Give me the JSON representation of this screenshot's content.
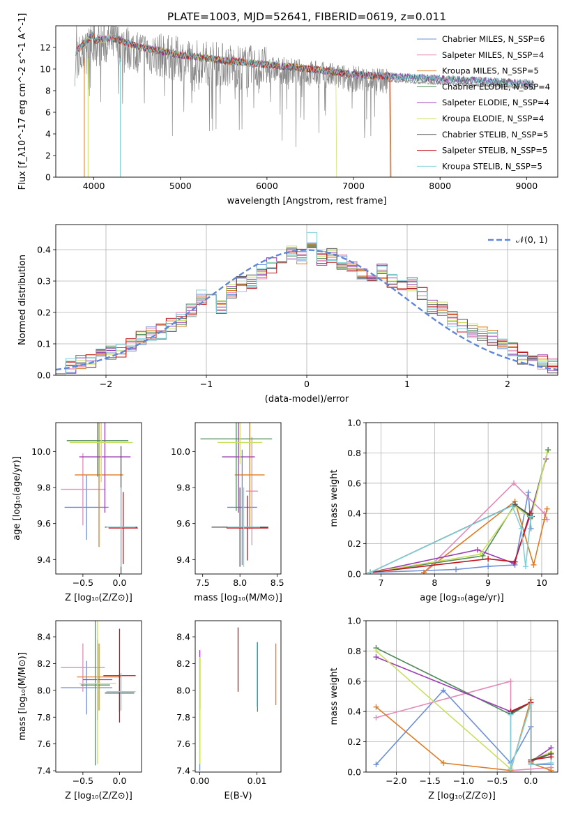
{
  "title": "PLATE=1003, MJD=52641, FIBERID=0619, z=0.011",
  "colors": {
    "Chabrier MILES": "#6b8fd8",
    "Salpeter MILES": "#e48ab8",
    "Kroupa MILES": "#e07a20",
    "Chabrier ELODIE": "#4f8a5a",
    "Salpeter ELODIE": "#9a3fb3",
    "Kroupa ELODIE": "#c8e060",
    "Chabrier STELIB": "#555555",
    "Salpeter STELIB": "#c0141c",
    "Kroupa STELIB": "#7fd0d8",
    "data": "#888888",
    "normal": "#5f86d8"
  },
  "chart_data": [
    {
      "id": "spectrum",
      "type": "line",
      "xlabel": "wavelength [Angstrom, rest frame]",
      "ylabel": "Flux [f_λ10^-17 erg cm^-2 s^-1 A^-1]",
      "xlim": [
        3560,
        9360
      ],
      "ylim": [
        0,
        14
      ],
      "xticks": [
        4000,
        5000,
        6000,
        7000,
        8000,
        9000
      ],
      "yticks": [
        0,
        2,
        4,
        6,
        8,
        10,
        12
      ],
      "legend_position": "top-right",
      "legend": [
        "Chabrier MILES, N_SSP=6",
        "Salpeter MILES, N_SSP=4",
        "Kroupa MILES, N_SSP=5",
        "Chabrier ELODIE, N_SSP=4",
        "Salpeter ELODIE, N_SSP=4",
        "Kroupa ELODIE, N_SSP=4",
        "Chabrier STELIB, N_SSP=5",
        "Salpeter STELIB, N_SSP=5",
        "Kroupa STELIB, N_SSP=5"
      ],
      "continuum": {
        "x": [
          3780,
          3900,
          4000,
          4200,
          4500,
          5000,
          5500,
          6000,
          6500,
          7000,
          7500,
          8000,
          8500,
          9000,
          9100
        ],
        "y": [
          10.5,
          11.5,
          12.2,
          12.5,
          11.7,
          10.9,
          10.4,
          10.0,
          9.6,
          9.1,
          8.9,
          8.7,
          8.5,
          8.3,
          8.2
        ]
      },
      "grid": false
    },
    {
      "id": "residuals",
      "type": "step",
      "xlabel": "(data-model)/error",
      "ylabel": "Normed distribution",
      "xlim": [
        -2.5,
        2.5
      ],
      "ylim": [
        0,
        0.48
      ],
      "xticks": [
        -2,
        -1,
        0,
        1,
        2
      ],
      "yticks": [
        0.0,
        0.1,
        0.2,
        0.3,
        0.4
      ],
      "legend": [
        "𝒩(0, 1)"
      ],
      "legend_position": "top-right",
      "grid": true,
      "base_hist": {
        "bin_start": -2.5,
        "bin_width": 0.1,
        "values": [
          0.03,
          0.03,
          0.04,
          0.05,
          0.06,
          0.07,
          0.08,
          0.1,
          0.12,
          0.13,
          0.14,
          0.16,
          0.18,
          0.21,
          0.25,
          0.26,
          0.22,
          0.27,
          0.29,
          0.3,
          0.33,
          0.35,
          0.37,
          0.39,
          0.38,
          0.43,
          0.37,
          0.38,
          0.36,
          0.35,
          0.33,
          0.31,
          0.33,
          0.3,
          0.28,
          0.29,
          0.26,
          0.22,
          0.21,
          0.18,
          0.16,
          0.14,
          0.13,
          0.12,
          0.1,
          0.08,
          0.06,
          0.05,
          0.04,
          0.03
        ]
      }
    },
    {
      "id": "age_vs_Z",
      "type": "errorbar",
      "xlabel": "Z [log₁₀(Z/Z⊙)]",
      "ylabel": "age  [log₁₀(age/yr)]",
      "xlim": [
        -0.87,
        0.3
      ],
      "ylim": [
        9.32,
        10.16
      ],
      "xticks": [
        -0.5,
        0.0
      ],
      "yticks": [
        9.4,
        9.6,
        9.8,
        10.0
      ],
      "grid": false,
      "points": [
        {
          "model": "Chabrier MILES",
          "x": -0.45,
          "xerr": 0.3,
          "y": 9.69,
          "yerr": 0.18
        },
        {
          "model": "Salpeter MILES",
          "x": -0.5,
          "xerr": 0.3,
          "y": 9.79,
          "yerr": 0.2
        },
        {
          "model": "Kroupa MILES",
          "x": -0.28,
          "xerr": 0.33,
          "y": 9.87,
          "yerr": 0.4
        },
        {
          "model": "Chabrier ELODIE",
          "x": -0.3,
          "xerr": 0.42,
          "y": 10.06,
          "yerr": 0.2
        },
        {
          "model": "Salpeter ELODIE",
          "x": -0.2,
          "xerr": 0.35,
          "y": 9.97,
          "yerr": 0.31
        },
        {
          "model": "Kroupa ELODIE",
          "x": -0.25,
          "xerr": 0.43,
          "y": 10.05,
          "yerr": 0.22
        },
        {
          "model": "Chabrier STELIB",
          "x": 0.02,
          "xerr": 0.22,
          "y": 9.58,
          "yerr": 0.45
        },
        {
          "model": "Salpeter STELIB",
          "x": 0.05,
          "xerr": 0.2,
          "y": 9.575,
          "yerr": 0.2
        },
        {
          "model": "Kroupa STELIB",
          "x": 0.02,
          "xerr": 0.2,
          "y": 9.58,
          "yerr": 0.22
        }
      ]
    },
    {
      "id": "age_vs_mass",
      "type": "errorbar",
      "xlabel": "mass [log₁₀(M/M⊙)]",
      "ylabel": "",
      "xlim": [
        7.4,
        8.55
      ],
      "ylim": [
        9.32,
        10.16
      ],
      "xticks": [
        7.5,
        8.0,
        8.5
      ],
      "yticks": [
        9.4,
        9.6,
        9.8,
        10.0
      ],
      "grid": false,
      "points": [
        {
          "model": "Chabrier MILES",
          "x": 8.03,
          "xerr": 0.2,
          "y": 9.69,
          "yerr": 0.32
        },
        {
          "model": "Salpeter MILES",
          "x": 8.16,
          "xerr": 0.08,
          "y": 9.78,
          "yerr": 0.3
        },
        {
          "model": "Kroupa MILES",
          "x": 8.13,
          "xerr": 0.2,
          "y": 9.87,
          "yerr": 0.3
        },
        {
          "model": "Chabrier ELODIE",
          "x": 7.95,
          "xerr": 0.48,
          "y": 10.07,
          "yerr": 0.4
        },
        {
          "model": "Salpeter ELODIE",
          "x": 7.98,
          "xerr": 0.22,
          "y": 9.97,
          "yerr": 0.31
        },
        {
          "model": "Kroupa ELODIE",
          "x": 8.0,
          "xerr": 0.3,
          "y": 10.05,
          "yerr": 0.12
        },
        {
          "model": "Chabrier STELIB",
          "x": 8.0,
          "xerr": 0.38,
          "y": 9.58,
          "yerr": 0.22
        },
        {
          "model": "Salpeter STELIB",
          "x": 8.1,
          "xerr": 0.28,
          "y": 9.575,
          "yerr": 0.18
        },
        {
          "model": "Kroupa STELIB",
          "x": 8.05,
          "xerr": 0.22,
          "y": 9.58,
          "yerr": 0.22
        }
      ]
    },
    {
      "id": "weight_vs_age",
      "type": "line",
      "xlabel": "age  [log₁₀(age/yr)]",
      "ylabel": "mass weight",
      "xlim": [
        6.72,
        10.3
      ],
      "ylim": [
        0,
        1
      ],
      "xticks": [
        7,
        8,
        9,
        10
      ],
      "yticks": [
        0.0,
        0.2,
        0.4,
        0.6,
        0.8,
        1.0
      ],
      "grid": true,
      "series": [
        {
          "model": "Chabrier MILES",
          "x": [
            6.8,
            8.4,
            9.0,
            9.5,
            9.75,
            9.8
          ],
          "y": [
            0.01,
            0.03,
            0.05,
            0.06,
            0.54,
            0.3
          ]
        },
        {
          "model": "Salpeter MILES",
          "x": [
            7.8,
            9.48,
            10.05,
            10.1
          ],
          "y": [
            0.01,
            0.6,
            0.4,
            0.36
          ]
        },
        {
          "model": "Kroupa MILES",
          "x": [
            7.8,
            9.5,
            9.85,
            10.05,
            10.1
          ],
          "y": [
            0.01,
            0.48,
            0.06,
            0.36,
            0.43
          ]
        },
        {
          "model": "Chabrier ELODIE",
          "x": [
            6.8,
            8.9,
            9.5,
            9.78,
            10.12
          ],
          "y": [
            0.01,
            0.12,
            0.46,
            0.38,
            0.82
          ]
        },
        {
          "model": "Salpeter ELODIE",
          "x": [
            6.8,
            8.8,
            9.48,
            9.8,
            10.08
          ],
          "y": [
            0.01,
            0.16,
            0.07,
            0.4,
            0.76
          ]
        },
        {
          "model": "Kroupa ELODIE",
          "x": [
            6.8,
            8.85,
            9.5,
            9.8,
            10.1
          ],
          "y": [
            0.01,
            0.13,
            0.45,
            0.37,
            0.8
          ]
        },
        {
          "model": "Chabrier STELIB",
          "x": [
            6.8,
            9.5,
            9.78,
            9.82
          ],
          "y": [
            0.01,
            0.46,
            0.39,
            0.38
          ]
        },
        {
          "model": "Salpeter STELIB",
          "x": [
            6.8,
            9.0,
            9.5,
            9.78
          ],
          "y": [
            0.01,
            0.1,
            0.08,
            0.4
          ]
        },
        {
          "model": "Kroupa STELIB",
          "x": [
            6.8,
            9.45,
            9.62,
            9.7,
            9.8
          ],
          "y": [
            0.01,
            0.45,
            0.3,
            0.05,
            0.38
          ]
        }
      ]
    },
    {
      "id": "mass_vs_Z",
      "type": "errorbar",
      "xlabel": "Z [log₁₀(Z/Z⊙)]",
      "ylabel": "mass [log₁₀(M/M⊙)]",
      "xlim": [
        -0.87,
        0.3
      ],
      "ylim": [
        7.39,
        8.52
      ],
      "xticks": [
        -0.5,
        0.0
      ],
      "yticks": [
        7.4,
        7.6,
        7.8,
        8.0,
        8.2,
        8.4
      ],
      "grid": false,
      "points": [
        {
          "model": "Chabrier MILES",
          "x": -0.45,
          "xerr": 0.35,
          "y": 8.02,
          "yerr": 0.2
        },
        {
          "model": "Salpeter MILES",
          "x": -0.5,
          "xerr": 0.3,
          "y": 8.17,
          "yerr": 0.18
        },
        {
          "model": "Kroupa MILES",
          "x": -0.28,
          "xerr": 0.3,
          "y": 8.1,
          "yerr": 0.25
        },
        {
          "model": "Chabrier ELODIE",
          "x": -0.33,
          "xerr": 0.2,
          "y": 8.04,
          "yerr": 0.6
        },
        {
          "model": "Salpeter ELODIE",
          "x": -0.3,
          "xerr": 0.2,
          "y": 8.08,
          "yerr": 0.3
        },
        {
          "model": "Kroupa ELODIE",
          "x": -0.3,
          "xerr": 0.25,
          "y": 8.05,
          "yerr": 0.6
        },
        {
          "model": "Chabrier STELIB",
          "x": 0.0,
          "xerr": 0.2,
          "y": 7.98,
          "yerr": 0.14
        },
        {
          "model": "Salpeter STELIB",
          "x": 0.0,
          "xerr": 0.22,
          "y": 8.11,
          "yerr": 0.35
        },
        {
          "model": "Kroupa STELIB",
          "x": 0.02,
          "xerr": 0.2,
          "y": 7.99,
          "yerr": 0.14
        }
      ]
    },
    {
      "id": "mass_vs_EBV",
      "type": "errorbar",
      "xlabel": "E(B-V)",
      "ylabel": "",
      "xlim": [
        -0.0008,
        0.0142
      ],
      "ylim": [
        7.39,
        8.52
      ],
      "xticks": [
        0.0,
        0.01
      ],
      "yticks": [
        7.4,
        7.6,
        7.8,
        8.0,
        8.2,
        8.4
      ],
      "grid": false,
      "points": [
        {
          "model": "Chabrier MILES",
          "x": 0.0,
          "y": 7.85,
          "yerr": 0.45
        },
        {
          "model": "Salpeter ELODIE",
          "x": 0.0,
          "y": 8.08,
          "yerr": 0.22
        },
        {
          "model": "Kroupa ELODIE",
          "x": 0.0,
          "y": 7.85,
          "yerr": 0.4
        },
        {
          "model": "Salpeter STELIB",
          "x": 0.0067,
          "y": 8.23,
          "yerr": 0.24
        },
        {
          "model": "Chabrier ELODIE",
          "x": 0.0101,
          "y": 8.1,
          "yerr": 0.26
        },
        {
          "model": "Kroupa STELIB",
          "x": 0.01,
          "y": 8.12,
          "yerr": 0.24
        },
        {
          "model": "Kroupa MILES",
          "x": 0.0133,
          "y": 8.12,
          "yerr": 0.23
        }
      ]
    },
    {
      "id": "weight_vs_Z",
      "type": "line",
      "xlabel": "Z [log₁₀(Z/Z⊙)]",
      "ylabel": "mass weight",
      "xlim": [
        -2.45,
        0.4
      ],
      "ylim": [
        0,
        1
      ],
      "xticks": [
        -2.0,
        -1.5,
        -1.0,
        -0.5,
        0.0
      ],
      "yticks": [
        0.0,
        0.2,
        0.4,
        0.6,
        0.8,
        1.0
      ],
      "grid": true,
      "series": [
        {
          "model": "Chabrier MILES",
          "x": [
            -2.3,
            -1.3,
            -0.3,
            0.0,
            0.0,
            0.3
          ],
          "y": [
            0.05,
            0.54,
            0.06,
            0.3,
            0.05,
            0.05
          ]
        },
        {
          "model": "Salpeter MILES",
          "x": [
            -2.3,
            -0.3,
            -0.3,
            0.0,
            0.3
          ],
          "y": [
            0.36,
            0.6,
            0.01,
            0.02,
            0.03
          ]
        },
        {
          "model": "Kroupa MILES",
          "x": [
            -2.3,
            -1.3,
            -0.3,
            0.0,
            0.0,
            0.3
          ],
          "y": [
            0.43,
            0.06,
            0.01,
            0.48,
            0.06,
            0.01
          ]
        },
        {
          "model": "Chabrier ELODIE",
          "x": [
            -2.3,
            -0.3,
            0.0,
            0.0,
            0.3
          ],
          "y": [
            0.82,
            0.38,
            0.46,
            0.07,
            0.12
          ]
        },
        {
          "model": "Salpeter ELODIE",
          "x": [
            -2.3,
            -0.3,
            0.0,
            0.0,
            0.3
          ],
          "y": [
            0.76,
            0.4,
            0.46,
            0.07,
            0.16
          ]
        },
        {
          "model": "Kroupa ELODIE",
          "x": [
            -2.3,
            -0.3,
            0.0,
            0.0,
            0.3
          ],
          "y": [
            0.8,
            0.02,
            0.45,
            0.08,
            0.13
          ]
        },
        {
          "model": "Chabrier STELIB",
          "x": [
            -0.3,
            0.0,
            0.0,
            0.3
          ],
          "y": [
            0.39,
            0.46,
            0.08,
            0.12
          ]
        },
        {
          "model": "Salpeter STELIB",
          "x": [
            -0.3,
            0.0,
            0.0,
            0.3
          ],
          "y": [
            0.4,
            0.46,
            0.08,
            0.1
          ]
        },
        {
          "model": "Kroupa STELIB",
          "x": [
            -0.3,
            -0.3,
            0.0,
            0.0,
            0.3
          ],
          "y": [
            0.38,
            0.02,
            0.45,
            0.05,
            0.06
          ]
        }
      ]
    }
  ]
}
